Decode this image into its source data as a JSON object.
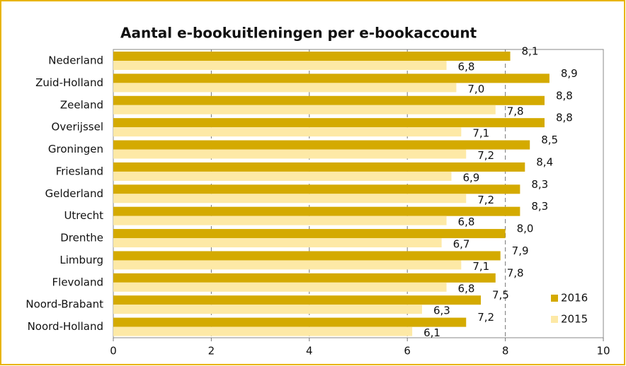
{
  "chart_data": {
    "type": "bar",
    "orientation": "horizontal",
    "title": "Aantal e-bookuitleningen per e-bookaccount",
    "categories": [
      "Nederland",
      "Zuid-Holland",
      "Zeeland",
      "Overijssel",
      "Groningen",
      "Friesland",
      "Gelderland",
      "Utrecht",
      "Drenthe",
      "Limburg",
      "Flevoland",
      "Noord-Brabant",
      "Noord-Holland"
    ],
    "series": [
      {
        "name": "2016",
        "color": "#d4aa00",
        "values": [
          8.1,
          8.9,
          8.8,
          8.8,
          8.5,
          8.4,
          8.3,
          8.3,
          8.0,
          7.9,
          7.8,
          7.5,
          7.2
        ],
        "value_labels": [
          "8,1",
          "8,9",
          "8,8",
          "8,8",
          "8,5",
          "8,4",
          "8,3",
          "8,3",
          "8,0",
          "7,9",
          "7,8",
          "7,5",
          "7,2"
        ]
      },
      {
        "name": "2015",
        "color": "#fde9a6",
        "values": [
          6.8,
          7.0,
          7.8,
          7.1,
          7.2,
          6.9,
          7.2,
          6.8,
          6.7,
          7.1,
          6.8,
          6.3,
          6.1
        ],
        "value_labels": [
          "6,8",
          "7,0",
          "7,8",
          "7,1",
          "7,2",
          "6,9",
          "7,2",
          "6,8",
          "6,7",
          "7,1",
          "6,8",
          "6,3",
          "6,1"
        ]
      }
    ],
    "xlim": [
      0,
      10
    ],
    "xticks": [
      0,
      2,
      4,
      6,
      8,
      10
    ],
    "grid": true,
    "legend": "lower right"
  }
}
